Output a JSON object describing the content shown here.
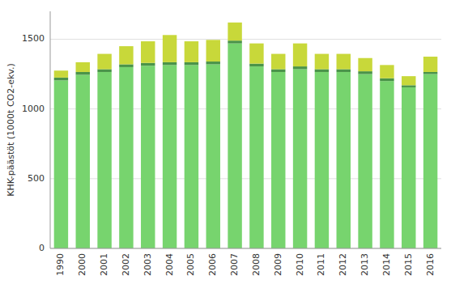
{
  "chart_data": {
    "type": "bar",
    "stacked": true,
    "ylabel": "KHK-päästöt (1000t CO2-ekv.)",
    "categories": [
      "1990",
      "2000",
      "2001",
      "2002",
      "2003",
      "2004",
      "2005",
      "2006",
      "2007",
      "2008",
      "2009",
      "2010",
      "2011",
      "2012",
      "2013",
      "2014",
      "2015",
      "2016"
    ],
    "series": [
      {
        "color": "#77d46e",
        "values": [
          1205,
          1245,
          1265,
          1300,
          1310,
          1315,
          1315,
          1320,
          1470,
          1305,
          1265,
          1285,
          1265,
          1265,
          1250,
          1200,
          1155,
          1250
        ]
      },
      {
        "color": "#4a9448",
        "values": [
          20,
          20,
          20,
          20,
          20,
          20,
          20,
          20,
          20,
          20,
          20,
          20,
          20,
          20,
          20,
          20,
          15,
          15
        ]
      },
      {
        "color": "#c8d83a",
        "values": [
          50,
          70,
          110,
          130,
          155,
          195,
          150,
          155,
          130,
          145,
          110,
          165,
          110,
          110,
          95,
          95,
          65,
          110
        ]
      }
    ],
    "ylim": [
      0,
      1700
    ],
    "yticks": [
      0,
      500,
      1000,
      1500
    ],
    "grid": true
  }
}
